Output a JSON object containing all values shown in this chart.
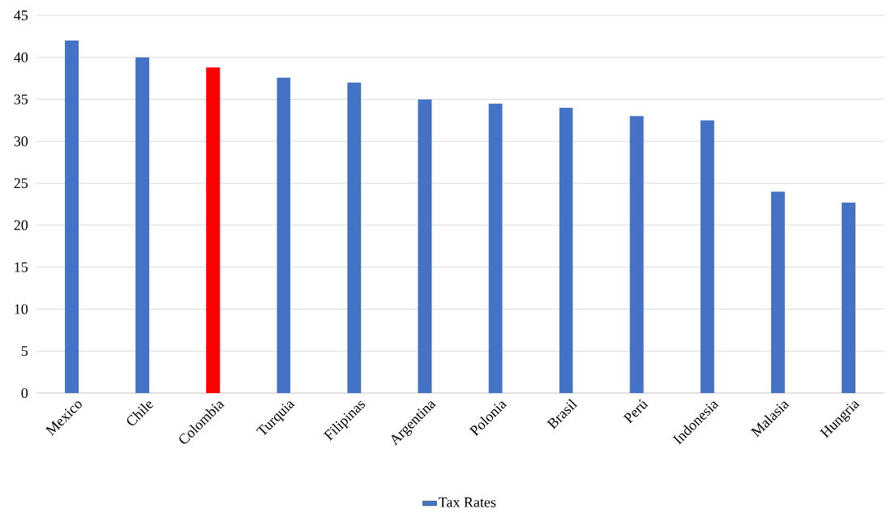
{
  "chart_data": {
    "type": "bar",
    "categories": [
      "Mexico",
      "Chile",
      "Colombia",
      "Turquia",
      "Filipinas",
      "Argentina",
      "Polonia",
      "Brasil",
      "Perú",
      "Indonesia",
      "Malasia",
      "Hungria"
    ],
    "series": [
      {
        "name": "Tax Rates",
        "color": "#4472c4",
        "values": [
          42,
          40,
          38.8,
          37.6,
          37,
          35,
          34.5,
          34,
          33,
          32.5,
          24,
          22.7
        ],
        "colors": [
          "#4472c4",
          "#4472c4",
          "#ff0000",
          "#4472c4",
          "#4472c4",
          "#4472c4",
          "#4472c4",
          "#4472c4",
          "#4472c4",
          "#4472c4",
          "#4472c4",
          "#4472c4"
        ]
      }
    ],
    "ylim": [
      0,
      45
    ],
    "yticks": [
      0,
      5,
      10,
      15,
      20,
      25,
      30,
      35,
      40,
      45
    ],
    "grid": "y",
    "legend": "bottom"
  }
}
